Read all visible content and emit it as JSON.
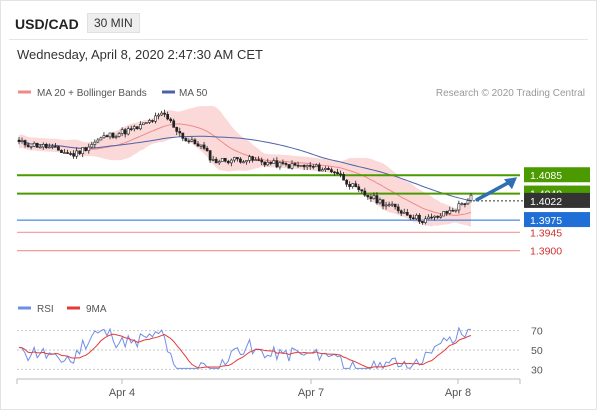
{
  "header": {
    "pair": "USD/CAD",
    "timeframe": "30 MIN",
    "datetime": "Wednesday, April 8, 2020 2:47:30 AM CET"
  },
  "legend": {
    "bb_label": "MA 20 + Bollinger Bands",
    "ma50_label": "MA 50",
    "copyright": "Research © 2020 Trading Central",
    "rsi_label": "RSI",
    "rsi_ma_label": "9MA"
  },
  "colors": {
    "green": "#4a9a00",
    "blue_level": "#1f6fd6",
    "red_level": "#f39a9a",
    "band_fill": "#fbd9d9",
    "ma20": "#f08a8a",
    "ma50": "#4b62a8",
    "arrow": "#2f6db5",
    "rsi": "#6f8ee6",
    "rsi_ma": "#e23a3a",
    "current": "#333333"
  },
  "chart_data": [
    {
      "type": "candlestick",
      "timeframe": "30 MIN",
      "x_labels": [
        "Apr 4",
        "Apr 7",
        "Apr 8"
      ],
      "ylim": [
        1.385,
        1.425
      ],
      "levels": [
        {
          "label": "1.4085",
          "value": 1.4085,
          "color": "green"
        },
        {
          "label": "1.4040",
          "value": 1.404,
          "color": "green"
        },
        {
          "label": "1.4022",
          "value": 1.4022,
          "color": "current"
        },
        {
          "label": "1.3975",
          "value": 1.3975,
          "color": "blue"
        },
        {
          "label": "1.3945",
          "value": 1.3945,
          "color": "red"
        },
        {
          "label": "1.3900",
          "value": 1.39,
          "color": "red"
        }
      ],
      "indicators": [
        "MA 20 + Bollinger Bands",
        "MA 50"
      ],
      "trend_arrow": "up"
    },
    {
      "type": "line",
      "title": "RSI",
      "series": [
        {
          "name": "RSI"
        },
        {
          "name": "9MA"
        }
      ],
      "y_ticks": [
        "70",
        "50",
        "30"
      ],
      "ylim": [
        20,
        80
      ]
    }
  ]
}
